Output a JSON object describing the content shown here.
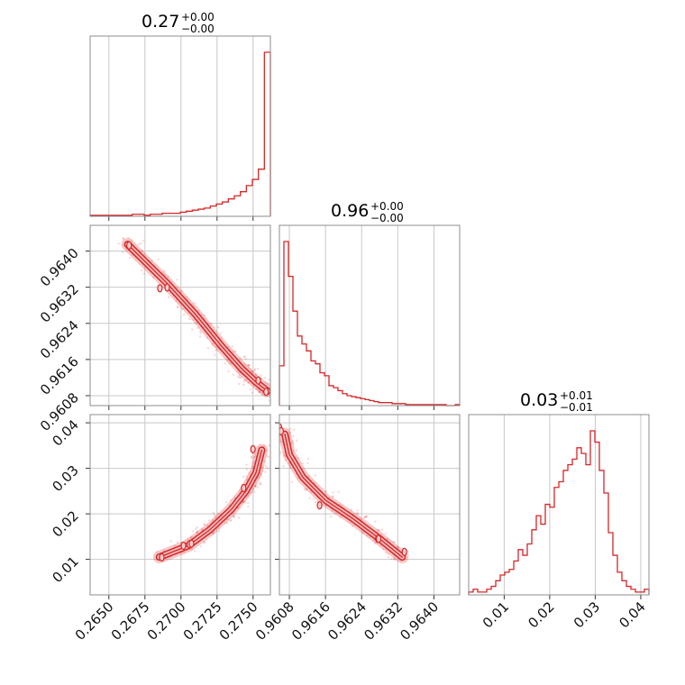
{
  "chart_data": {
    "type": "corner",
    "color": "#d62728",
    "grid": true,
    "parameters": [
      {
        "title": "0.27",
        "upper": "+0.00",
        "lower": "−0.00",
        "range": [
          0.2637,
          0.2762
        ],
        "ticks": [
          0.265,
          0.2675,
          0.27,
          0.2725,
          0.275
        ],
        "tick_labels": [
          "0.2650",
          "0.2675",
          "0.2700",
          "0.2725",
          "0.2750"
        ]
      },
      {
        "title": "0.96",
        "upper": "+0.00",
        "lower": "−0.00",
        "range": [
          0.96058,
          0.96457
        ],
        "ticks": [
          0.9608,
          0.9616,
          0.9624,
          0.9632,
          0.964
        ],
        "tick_labels": [
          "0.9608",
          "0.9616",
          "0.9624",
          "0.9632",
          "0.9640"
        ]
      },
      {
        "title": "0.03",
        "upper": "+0.01",
        "lower": "−0.01",
        "range": [
          0.0022,
          0.0418
        ],
        "ticks": [
          0.01,
          0.02,
          0.03,
          0.04
        ],
        "tick_labels": [
          "0.01",
          "0.02",
          "0.03",
          "0.04"
        ]
      }
    ],
    "histograms": [
      {
        "param": 0,
        "bins": [
          0.2637,
          0.2762
        ],
        "counts": [
          1,
          1,
          1,
          1,
          1,
          1,
          1,
          2,
          2,
          1,
          2,
          2,
          3,
          3,
          3,
          4,
          5,
          6,
          7,
          8,
          10,
          12,
          14,
          17,
          20,
          24,
          30,
          36,
          46,
          160
        ]
      },
      {
        "param": 1,
        "bins": [
          0.96058,
          0.96457
        ],
        "counts": [
          40,
          165,
          130,
          95,
          70,
          62,
          55,
          45,
          42,
          33,
          30,
          20,
          18,
          15,
          12,
          10,
          9,
          8,
          7,
          6,
          5,
          4,
          3,
          3,
          3,
          2,
          2,
          2,
          1,
          1,
          1,
          1,
          1,
          1,
          1,
          1,
          1,
          0,
          0,
          1
        ]
      },
      {
        "param": 2,
        "bins": [
          0.0022,
          0.0418
        ],
        "counts": [
          1,
          2,
          1,
          1,
          2,
          3,
          5,
          7,
          8,
          9,
          12,
          16,
          14,
          18,
          23,
          28,
          25,
          32,
          31,
          38,
          40,
          44,
          46,
          48,
          52,
          50,
          46,
          58,
          54,
          44,
          36,
          22,
          14,
          8,
          5,
          3,
          2,
          1,
          1,
          2
        ]
      }
    ],
    "pairs": [
      {
        "x_param": 0,
        "y_param": 1,
        "curve": [
          [
            0.2663,
            0.96415
          ],
          [
            0.269,
            0.9633
          ],
          [
            0.271,
            0.9626
          ],
          [
            0.2728,
            0.9619
          ],
          [
            0.2742,
            0.9614
          ],
          [
            0.2752,
            0.9611
          ],
          [
            0.276,
            0.9609
          ]
        ]
      },
      {
        "x_param": 0,
        "y_param": 2,
        "curve": [
          [
            0.2685,
            0.0105
          ],
          [
            0.2705,
            0.013
          ],
          [
            0.272,
            0.0165
          ],
          [
            0.2735,
            0.021
          ],
          [
            0.2745,
            0.025
          ],
          [
            0.2752,
            0.029
          ],
          [
            0.2756,
            0.034
          ]
        ]
      },
      {
        "x_param": 1,
        "y_param": 2,
        "curve": [
          [
            0.9607,
            0.0375
          ],
          [
            0.9608,
            0.033
          ],
          [
            0.9611,
            0.028
          ],
          [
            0.9616,
            0.023
          ],
          [
            0.9622,
            0.019
          ],
          [
            0.9628,
            0.0145
          ],
          [
            0.9633,
            0.0105
          ]
        ]
      }
    ]
  }
}
